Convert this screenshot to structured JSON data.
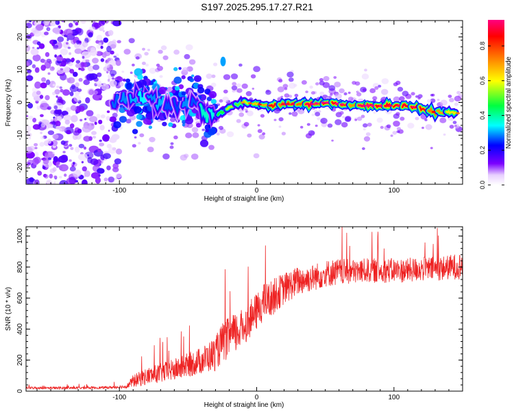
{
  "title": "S197.2025.295.17.27.R21",
  "chart_data": [
    {
      "type": "heatmap",
      "xlabel": "Height of straight line (km)",
      "ylabel": "Frequency (Hz)",
      "xlim": [
        -168,
        150
      ],
      "ylim": [
        -25,
        25
      ],
      "xticks": [
        -100,
        0,
        100
      ],
      "xtick_labels": [
        "-100",
        "0",
        "100"
      ],
      "yticks": [
        -20,
        -10,
        0,
        10,
        20
      ],
      "ytick_labels": [
        "-20",
        "-10",
        "0",
        "10",
        "20"
      ],
      "colorbar": {
        "label": "Normalized spectral amplitude",
        "range": [
          0,
          0.95
        ],
        "ticks": [
          0.0,
          0.2,
          0.4,
          0.6,
          0.8
        ],
        "tick_labels": [
          "0.0",
          "0.2",
          "0.4",
          "0.6",
          "0.8"
        ],
        "colors": [
          "#ffffff",
          "#7b00ff",
          "#0000ff",
          "#00ffff",
          "#00ff00",
          "#ffff00",
          "#ff0000",
          "#ff0080"
        ]
      },
      "trace": {
        "x": [
          -105,
          -95,
          -85,
          -75,
          -65,
          -55,
          -45,
          -38,
          -30,
          -20,
          -10,
          0,
          10,
          20,
          30,
          40,
          50,
          60,
          70,
          80,
          90,
          100,
          110,
          120,
          130,
          140,
          150
        ],
        "frequency": [
          0.5,
          1.5,
          2,
          0.5,
          -1,
          -0.5,
          0,
          -3,
          -4,
          -1.5,
          0,
          -0.5,
          -1,
          -0.5,
          -0.5,
          -0.5,
          0,
          -0.5,
          -1,
          -1,
          -1,
          -1,
          -1,
          -2,
          -3,
          -3,
          -3.5
        ],
        "amplitude": [
          0.3,
          0.3,
          0.35,
          0.3,
          0.3,
          0.3,
          0.25,
          0.35,
          0.4,
          0.5,
          0.6,
          0.7,
          0.75,
          0.8,
          0.8,
          0.85,
          0.85,
          0.85,
          0.8,
          0.85,
          0.85,
          0.8,
          0.85,
          0.8,
          0.75,
          0.7,
          0.6
        ]
      },
      "noise_region": {
        "x": [
          -168,
          -100
        ],
        "frequency": [
          -25,
          25
        ],
        "amplitude": 0.15
      }
    },
    {
      "type": "line",
      "xlabel": "Height of straight line (km)",
      "ylabel": "SNR (10 * v/v)",
      "xlim": [
        -168,
        150
      ],
      "ylim": [
        0,
        1060
      ],
      "xticks": [
        -100,
        0,
        100
      ],
      "xtick_labels": [
        "-100",
        "0",
        "100"
      ],
      "yticks": [
        0,
        200,
        400,
        600,
        800,
        1000
      ],
      "ytick_labels": [
        "0",
        "200",
        "400",
        "600",
        "800",
        "1000"
      ],
      "series": [
        {
          "name": "SNR",
          "color": "#ee2222",
          "x": [
            -168,
            -150,
            -130,
            -110,
            -95,
            -90,
            -80,
            -70,
            -60,
            -50,
            -40,
            -30,
            -25,
            -20,
            -15,
            -10,
            -5,
            0,
            5,
            10,
            15,
            20,
            30,
            40,
            50,
            60,
            70,
            80,
            90,
            100,
            110,
            120,
            130,
            140,
            150
          ],
          "y": [
            20,
            20,
            20,
            22,
            28,
            60,
            90,
            110,
            130,
            160,
            190,
            230,
            300,
            330,
            360,
            400,
            450,
            500,
            560,
            580,
            620,
            650,
            700,
            720,
            750,
            760,
            760,
            770,
            770,
            770,
            770,
            780,
            780,
            790,
            800
          ],
          "spread": [
            10,
            10,
            10,
            10,
            15,
            50,
            70,
            80,
            90,
            100,
            110,
            140,
            160,
            170,
            170,
            150,
            150,
            150,
            150,
            150,
            140,
            130,
            120,
            110,
            110,
            110,
            100,
            100,
            100,
            100,
            100,
            100,
            100,
            100,
            110
          ]
        }
      ]
    }
  ]
}
